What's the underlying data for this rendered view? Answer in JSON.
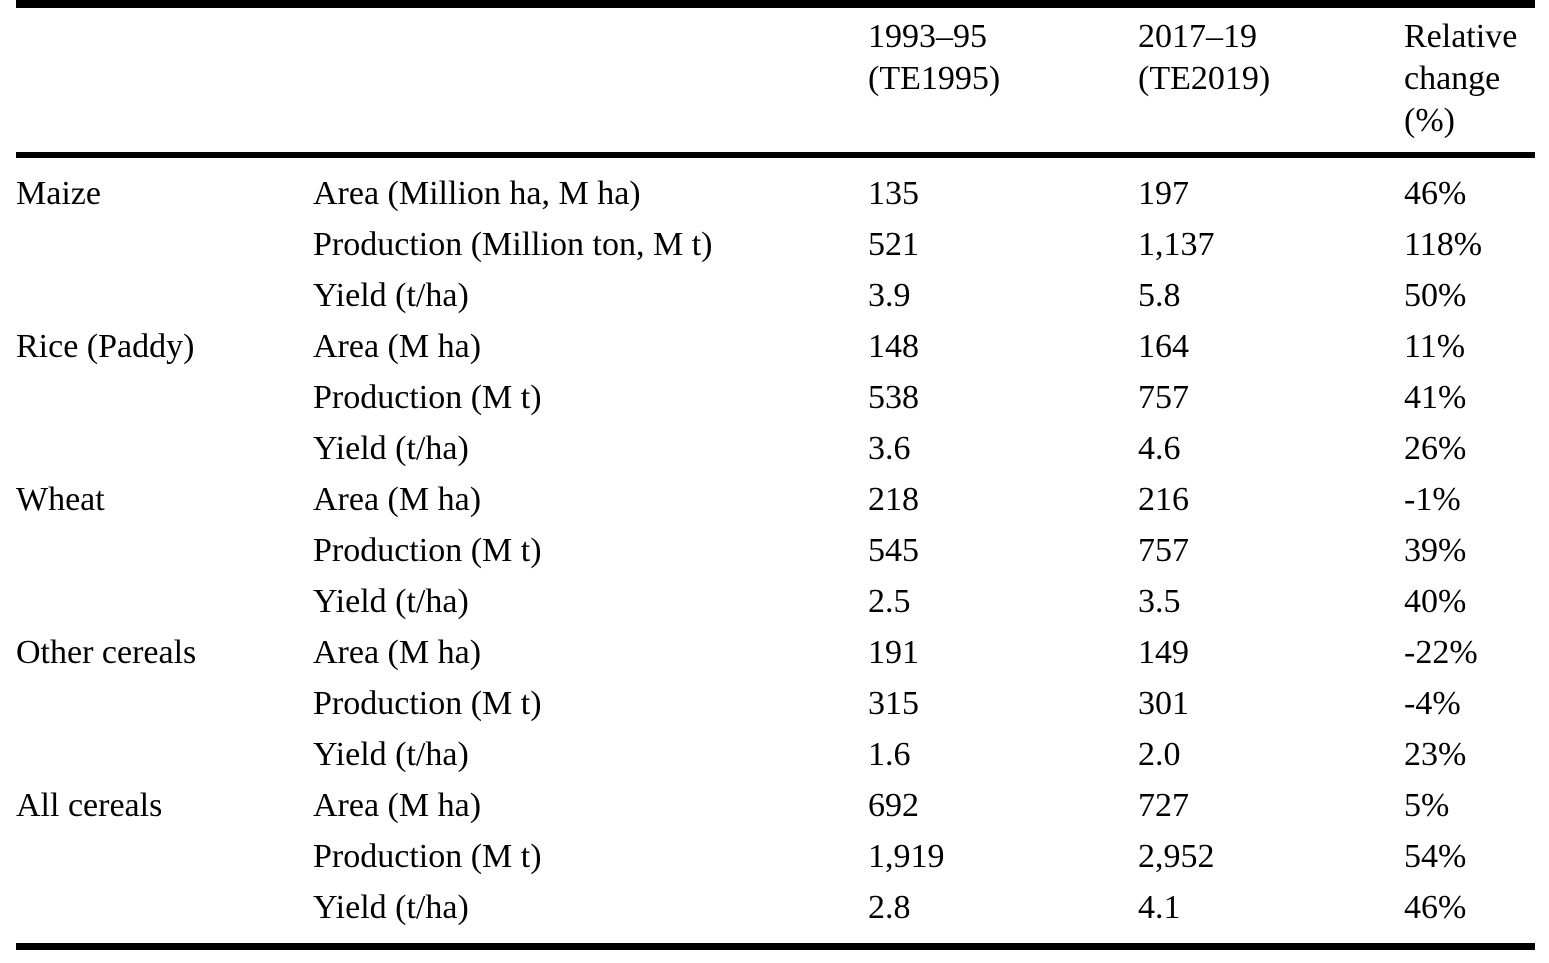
{
  "page": {
    "background_color": "#ffffff",
    "text_color": "#000000",
    "rule_color": "#000000"
  },
  "table": {
    "header": {
      "col_crop": "",
      "col_metric": "",
      "col_te1995": {
        "line1": "1993–95",
        "line2": "(TE1995)"
      },
      "col_te2019": {
        "line1": "2017–19",
        "line2": "(TE2019)"
      },
      "col_change": {
        "line1": "Relative",
        "line2": "change",
        "line3": "(%)"
      }
    },
    "rows": [
      {
        "crop": "Maize",
        "metric": "Area (Million ha, M ha)",
        "te1995": "135",
        "te2019": "197",
        "change": "46%"
      },
      {
        "crop": "",
        "metric": "Production (Million ton, M t)",
        "te1995": "521",
        "te2019": "1,137",
        "change": "118%"
      },
      {
        "crop": "",
        "metric": "Yield (t/ha)",
        "te1995": "3.9",
        "te2019": "5.8",
        "change": "50%"
      },
      {
        "crop": "Rice (Paddy)",
        "metric": "Area (M ha)",
        "te1995": "148",
        "te2019": "164",
        "change": "11%"
      },
      {
        "crop": "",
        "metric": "Production (M t)",
        "te1995": "538",
        "te2019": "757",
        "change": "41%"
      },
      {
        "crop": "",
        "metric": "Yield (t/ha)",
        "te1995": "3.6",
        "te2019": "4.6",
        "change": "26%"
      },
      {
        "crop": "Wheat",
        "metric": "Area (M ha)",
        "te1995": "218",
        "te2019": "216",
        "change": "-1%"
      },
      {
        "crop": "",
        "metric": "Production (M t)",
        "te1995": "545",
        "te2019": "757",
        "change": "39%"
      },
      {
        "crop": "",
        "metric": "Yield (t/ha)",
        "te1995": "2.5",
        "te2019": "3.5",
        "change": "40%"
      },
      {
        "crop": "Other cereals",
        "metric": "Area (M ha)",
        "te1995": "191",
        "te2019": "149",
        "change": "-22%"
      },
      {
        "crop": "",
        "metric": "Production (M t)",
        "te1995": "315",
        "te2019": "301",
        "change": "-4%"
      },
      {
        "crop": "",
        "metric": "Yield (t/ha)",
        "te1995": "1.6",
        "te2019": "2.0",
        "change": "23%"
      },
      {
        "crop": "All cereals",
        "metric": "Area (M ha)",
        "te1995": "692",
        "te2019": "727",
        "change": "5%"
      },
      {
        "crop": "",
        "metric": "Production (M t)",
        "te1995": "1,919",
        "te2019": "2,952",
        "change": "54%"
      },
      {
        "crop": "",
        "metric": "Yield (t/ha)",
        "te1995": "2.8",
        "te2019": "4.1",
        "change": "46%"
      }
    ]
  }
}
